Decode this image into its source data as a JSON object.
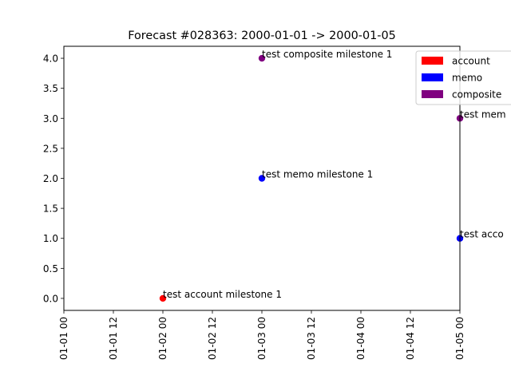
{
  "chart_data": {
    "type": "scatter",
    "title": "Forecast #028363: 2000-01-01 -> 2000-01-05",
    "xlabel": "",
    "ylabel": "",
    "xlim": [
      "2000-01-01 00:00",
      "2000-01-05 00:00"
    ],
    "ylim": [
      -0.2,
      4.2
    ],
    "x_ticks": [
      "01-01 00",
      "01-01 12",
      "01-02 00",
      "01-02 12",
      "01-03 00",
      "01-03 12",
      "01-04 00",
      "01-04 12",
      "01-05 00"
    ],
    "y_ticks": [
      "0.0",
      "0.5",
      "1.0",
      "1.5",
      "2.0",
      "2.5",
      "3.0",
      "3.5",
      "4.0"
    ],
    "grid": false,
    "legend_position": "top-right",
    "legend": [
      {
        "label": "account",
        "color": "#ff0000"
      },
      {
        "label": "memo",
        "color": "#0000ff"
      },
      {
        "label": "composite",
        "color": "#800080"
      }
    ],
    "points": [
      {
        "x": "2000-01-02 00:00",
        "y": 0,
        "category": "account",
        "label": "test account milestone 1"
      },
      {
        "x": "2000-01-03 00:00",
        "y": 2,
        "category": "memo",
        "label": "test memo milestone 1"
      },
      {
        "x": "2000-01-03 00:00",
        "y": 4,
        "category": "composite",
        "label": "test composite milestone 1"
      },
      {
        "x": "2000-01-05 00:00",
        "y": 1,
        "category": "memo",
        "label": "test acco"
      },
      {
        "x": "2000-01-05 00:00",
        "y": 3,
        "category": "composite",
        "label": "test mem"
      }
    ]
  }
}
